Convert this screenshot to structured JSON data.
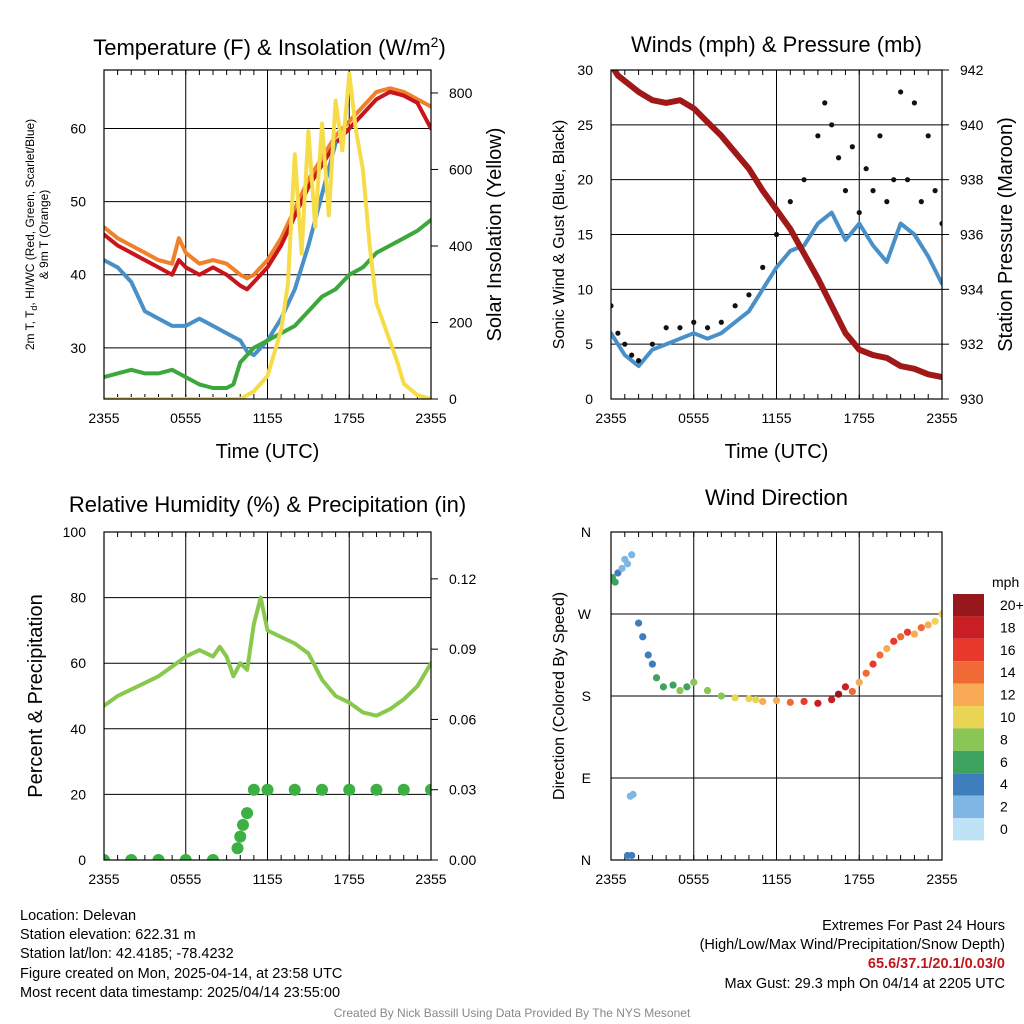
{
  "chart_data": [
    {
      "type": "line",
      "title": "Temperature (F) & Insolation (W/m²)",
      "xlabel": "Time (UTC)",
      "ylabel_lines": [
        "2m T, T",
        "d",
        ", HI/WC (Red, Green, Scarlet/Blue)",
        "& 9m T (Orange)"
      ],
      "y2label": "Solar Insolation (Yellow)",
      "x_ticks": [
        "2355",
        "0555",
        "1155",
        "1755",
        "2355"
      ],
      "xlim": [
        0,
        24
      ],
      "ylim": [
        23,
        68
      ],
      "y_ticks": [
        30,
        40,
        50,
        60
      ],
      "y2lim": [
        0,
        860
      ],
      "y2_ticks": [
        0,
        200,
        400,
        600,
        800
      ],
      "grid": true,
      "series": [
        {
          "color": "#f0802a",
          "axis": "left",
          "x": [
            0,
            1,
            2,
            3,
            4,
            5,
            5.5,
            6,
            7,
            8,
            9,
            10,
            10.5,
            11,
            12,
            13,
            14,
            15,
            16,
            17,
            18,
            19,
            20,
            21,
            22,
            23,
            24
          ],
          "y": [
            46.5,
            45,
            44,
            43,
            42,
            41.5,
            45,
            43,
            41.5,
            42,
            41.5,
            40,
            39.5,
            40,
            42,
            45,
            49,
            53,
            56,
            59,
            61,
            63,
            65,
            65.5,
            65,
            64,
            63
          ]
        },
        {
          "color": "#c8141c",
          "axis": "left",
          "x": [
            0,
            1,
            2,
            3,
            4,
            5,
            5.5,
            6,
            7,
            8,
            9,
            10,
            10.5,
            11,
            12,
            13,
            14,
            15,
            16,
            17,
            18,
            19,
            20,
            21,
            22,
            23,
            24
          ],
          "y": [
            45.5,
            44,
            43,
            42,
            41,
            40,
            42,
            41,
            40,
            41,
            40,
            38.5,
            38,
            39,
            41,
            44,
            48,
            52,
            55,
            58,
            60,
            62,
            64,
            65,
            64.5,
            63.5,
            60
          ]
        },
        {
          "color": "#4a90c8",
          "axis": "left",
          "x": [
            0,
            1,
            2,
            3,
            4,
            5,
            6,
            7,
            8,
            9,
            10,
            10.5,
            11,
            12,
            13,
            14,
            15,
            16,
            17
          ],
          "y": [
            42,
            41,
            39,
            35,
            34,
            33,
            33,
            34,
            33,
            32,
            31,
            29.5,
            29,
            31,
            34,
            38,
            44,
            51,
            58
          ]
        },
        {
          "color": "#3ca83c",
          "axis": "left",
          "x": [
            0,
            1,
            2,
            3,
            4,
            5,
            6,
            7,
            8,
            9,
            9.5,
            10,
            11,
            12,
            13,
            14,
            15,
            16,
            17,
            18,
            19,
            20,
            21,
            22,
            23,
            24
          ],
          "y": [
            26,
            26.5,
            27,
            26.5,
            26.5,
            27,
            26,
            25,
            24.5,
            24.5,
            25,
            28,
            30,
            31,
            32,
            33,
            35,
            37,
            38,
            40,
            41,
            43,
            44,
            45,
            46,
            47.5
          ]
        },
        {
          "color": "#f7dc4a",
          "axis": "right",
          "x": [
            0,
            9,
            10,
            11,
            12,
            13,
            13.5,
            14,
            14.5,
            15,
            15.5,
            16,
            16.5,
            17,
            17.5,
            18,
            18.5,
            19,
            19.5,
            20,
            20.5,
            21,
            21.5,
            22,
            23,
            24
          ],
          "y": [
            0,
            0,
            0,
            20,
            60,
            180,
            300,
            640,
            380,
            700,
            450,
            720,
            480,
            780,
            650,
            850,
            700,
            600,
            400,
            250,
            200,
            150,
            100,
            40,
            10,
            0
          ]
        }
      ]
    },
    {
      "type": "line",
      "title": "Winds (mph) & Pressure (mb)",
      "xlabel": "Time (UTC)",
      "ylabel": "Sonic Wind & Gust (Blue, Black)",
      "y2label": "Station Pressure (Maroon)",
      "x_ticks": [
        "2355",
        "0555",
        "1155",
        "1755",
        "2355"
      ],
      "xlim": [
        0,
        24
      ],
      "ylim": [
        0,
        30
      ],
      "y_ticks": [
        0,
        5,
        10,
        15,
        20,
        25,
        30
      ],
      "y2lim": [
        930,
        942
      ],
      "y2_ticks": [
        930,
        932,
        934,
        936,
        938,
        940,
        942
      ],
      "grid": true,
      "series": [
        {
          "color": "#4a90c8",
          "axis": "left",
          "x": [
            0,
            0.5,
            1,
            1.5,
            2,
            3,
            4,
            5,
            6,
            7,
            8,
            9,
            10,
            11,
            12,
            13,
            14,
            15,
            16,
            17,
            18,
            19,
            20,
            21,
            22,
            23,
            24
          ],
          "y": [
            6,
            5,
            4,
            3.5,
            3,
            4.5,
            5,
            5.5,
            6,
            5.5,
            6,
            7,
            8,
            10,
            12,
            13.5,
            14,
            16,
            17,
            14.5,
            16,
            14,
            12.5,
            16,
            15,
            13,
            10.5
          ]
        },
        {
          "color": "#111111",
          "axis": "left",
          "type": "scatter",
          "x": [
            0,
            0.5,
            1,
            1.5,
            2,
            3,
            4,
            5,
            6,
            7,
            8,
            9,
            10,
            11,
            12,
            13,
            14,
            15,
            15.5,
            16,
            16.5,
            17,
            17.5,
            18,
            18.5,
            19,
            19.5,
            20,
            20.5,
            21,
            21.5,
            22,
            22.5,
            23,
            23.5,
            24
          ],
          "y": [
            8.5,
            6,
            5,
            4,
            3.5,
            5,
            6.5,
            6.5,
            7,
            6.5,
            7,
            8.5,
            9.5,
            12,
            15,
            18,
            20,
            24,
            27,
            25,
            22,
            19,
            23,
            17,
            21,
            19,
            24,
            18,
            20,
            28,
            20,
            27,
            18,
            24,
            19,
            16
          ]
        },
        {
          "color": "#a01818",
          "axis": "right",
          "x": [
            0,
            0.5,
            1,
            2,
            3,
            4,
            5,
            6,
            7,
            8,
            9,
            10,
            11,
            12,
            13,
            14,
            15,
            16,
            17,
            18,
            19,
            20,
            21,
            22,
            23,
            24
          ],
          "y": [
            942.2,
            941.8,
            941.6,
            941.2,
            940.9,
            940.8,
            940.9,
            940.6,
            940.1,
            939.6,
            939.0,
            938.4,
            937.6,
            936.9,
            936.2,
            935.3,
            934.4,
            933.4,
            932.4,
            931.8,
            931.6,
            931.5,
            931.2,
            931.1,
            930.9,
            930.8
          ]
        }
      ]
    },
    {
      "type": "line",
      "title": "Relative Humidity (%) & Precipitation (in)",
      "ylabel": "Percent & Precipitation",
      "x_ticks": [
        "2355",
        "0555",
        "1155",
        "1755",
        "2355"
      ],
      "xlim": [
        0,
        24
      ],
      "ylim": [
        0,
        100
      ],
      "y_ticks": [
        0,
        20,
        40,
        60,
        80,
        100
      ],
      "y2lim": [
        0,
        0.14
      ],
      "y2_ticks": [
        "0.00",
        "0.03",
        "0.06",
        "0.09",
        "0.12"
      ],
      "grid": true,
      "series": [
        {
          "color": "#88c84c",
          "axis": "left",
          "x": [
            0,
            1,
            2,
            3,
            4,
            5,
            6,
            7,
            8,
            8.5,
            9,
            9.5,
            10,
            10.5,
            11,
            11.5,
            12,
            13,
            14,
            15,
            16,
            17,
            18,
            19,
            20,
            21,
            22,
            23,
            24
          ],
          "y": [
            47,
            50,
            52,
            54,
            56,
            59,
            62,
            64,
            62,
            65,
            62,
            56,
            60,
            58,
            72,
            80,
            70,
            68,
            66,
            63,
            55,
            50,
            48,
            45,
            44,
            46,
            49,
            53,
            60
          ]
        },
        {
          "color": "#3cb043",
          "axis": "right",
          "type": "scatter",
          "x": [
            0,
            2,
            4,
            6,
            8,
            9.8,
            10,
            10.2,
            10.5,
            11,
            12,
            14,
            16,
            18,
            20,
            22,
            24
          ],
          "y": [
            0,
            0,
            0,
            0,
            0,
            0.005,
            0.01,
            0.015,
            0.02,
            0.03,
            0.03,
            0.03,
            0.03,
            0.03,
            0.03,
            0.03,
            0.03
          ]
        }
      ]
    },
    {
      "type": "scatter",
      "title": "Wind Direction",
      "ylabel": "Direction (Colored By Speed)",
      "x_ticks": [
        "2355",
        "0555",
        "1155",
        "1755",
        "2355"
      ],
      "xlim": [
        0,
        24
      ],
      "ylim": [
        0,
        360
      ],
      "y_tick_labels": [
        "N",
        "E",
        "S",
        "W",
        "N"
      ],
      "grid": true,
      "legend_title": "mph",
      "legend_labels": [
        "20+",
        "18",
        "16",
        "14",
        "12",
        "10",
        "8",
        "6",
        "4",
        "2",
        "0"
      ],
      "legend_colors": [
        "#98171c",
        "#c81e24",
        "#e83a2c",
        "#f06a35",
        "#f8aa55",
        "#e9d553",
        "#8ac653",
        "#3ea35f",
        "#3f7ebd",
        "#80b6e3",
        "#bfe2f6"
      ],
      "points": [
        {
          "x": 0.1,
          "dir": 310,
          "spd": 6
        },
        {
          "x": 0.3,
          "dir": 305,
          "spd": 6
        },
        {
          "x": 0.5,
          "dir": 315,
          "spd": 4
        },
        {
          "x": 0.8,
          "dir": 320,
          "spd": 2
        },
        {
          "x": 1.0,
          "dir": 330,
          "spd": 1
        },
        {
          "x": 1.2,
          "dir": 325,
          "spd": 1
        },
        {
          "x": 1.5,
          "dir": 335,
          "spd": 2
        },
        {
          "x": 1.4,
          "dir": 70,
          "spd": 2
        },
        {
          "x": 1.6,
          "dir": 72,
          "spd": 1
        },
        {
          "x": 1.2,
          "dir": 5,
          "spd": 3
        },
        {
          "x": 1.5,
          "dir": 5,
          "spd": 3
        },
        {
          "x": 2.0,
          "dir": 260,
          "spd": 3
        },
        {
          "x": 2.3,
          "dir": 245,
          "spd": 4
        },
        {
          "x": 2.7,
          "dir": 225,
          "spd": 4
        },
        {
          "x": 3.0,
          "dir": 215,
          "spd": 4
        },
        {
          "x": 3.3,
          "dir": 200,
          "spd": 5
        },
        {
          "x": 3.8,
          "dir": 190,
          "spd": 6
        },
        {
          "x": 4.5,
          "dir": 192,
          "spd": 6
        },
        {
          "x": 5.0,
          "dir": 186,
          "spd": 7
        },
        {
          "x": 5.5,
          "dir": 190,
          "spd": 6
        },
        {
          "x": 6.0,
          "dir": 195,
          "spd": 7
        },
        {
          "x": 7.0,
          "dir": 186,
          "spd": 8
        },
        {
          "x": 8.0,
          "dir": 180,
          "spd": 8
        },
        {
          "x": 9.0,
          "dir": 178,
          "spd": 9
        },
        {
          "x": 10.0,
          "dir": 177,
          "spd": 9
        },
        {
          "x": 10.5,
          "dir": 176,
          "spd": 10
        },
        {
          "x": 11.0,
          "dir": 174,
          "spd": 11
        },
        {
          "x": 12.0,
          "dir": 175,
          "spd": 12
        },
        {
          "x": 13.0,
          "dir": 173,
          "spd": 13
        },
        {
          "x": 14.0,
          "dir": 174,
          "spd": 15
        },
        {
          "x": 15.0,
          "dir": 172,
          "spd": 17
        },
        {
          "x": 16.0,
          "dir": 176,
          "spd": 18
        },
        {
          "x": 16.5,
          "dir": 182,
          "spd": 19
        },
        {
          "x": 17.0,
          "dir": 190,
          "spd": 17
        },
        {
          "x": 17.5,
          "dir": 185,
          "spd": 13
        },
        {
          "x": 18.0,
          "dir": 195,
          "spd": 12
        },
        {
          "x": 18.5,
          "dir": 205,
          "spd": 14
        },
        {
          "x": 19.0,
          "dir": 215,
          "spd": 15
        },
        {
          "x": 19.5,
          "dir": 225,
          "spd": 14
        },
        {
          "x": 20.0,
          "dir": 232,
          "spd": 12
        },
        {
          "x": 20.5,
          "dir": 240,
          "spd": 15
        },
        {
          "x": 21.0,
          "dir": 245,
          "spd": 14
        },
        {
          "x": 21.5,
          "dir": 250,
          "spd": 16
        },
        {
          "x": 22.0,
          "dir": 248,
          "spd": 12
        },
        {
          "x": 22.5,
          "dir": 255,
          "spd": 14
        },
        {
          "x": 23.0,
          "dir": 258,
          "spd": 11
        },
        {
          "x": 23.5,
          "dir": 262,
          "spd": 10
        },
        {
          "x": 24.0,
          "dir": 270,
          "spd": 10
        }
      ]
    }
  ],
  "footer": {
    "location": "Location: Delevan",
    "elevation": "Station elevation: 622.31 m",
    "latlon": "Station lat/lon: 42.4185; -78.4232",
    "created": "Figure created on Mon, 2025-04-14, at 23:58 UTC",
    "recent": "Most recent data timestamp: 2025/04/14 23:55:00",
    "extremes_title": "Extremes For Past 24 Hours",
    "extremes_sub": "(High/Low/Max Wind/Precipitation/Snow Depth)",
    "extremes_values": "65.6/37.1/20.1/0.03/0",
    "max_gust": "Max Gust: 29.3 mph On 04/14 at 2205 UTC",
    "credit": "Created By Nick Bassill Using Data Provided By The NYS Mesonet"
  }
}
